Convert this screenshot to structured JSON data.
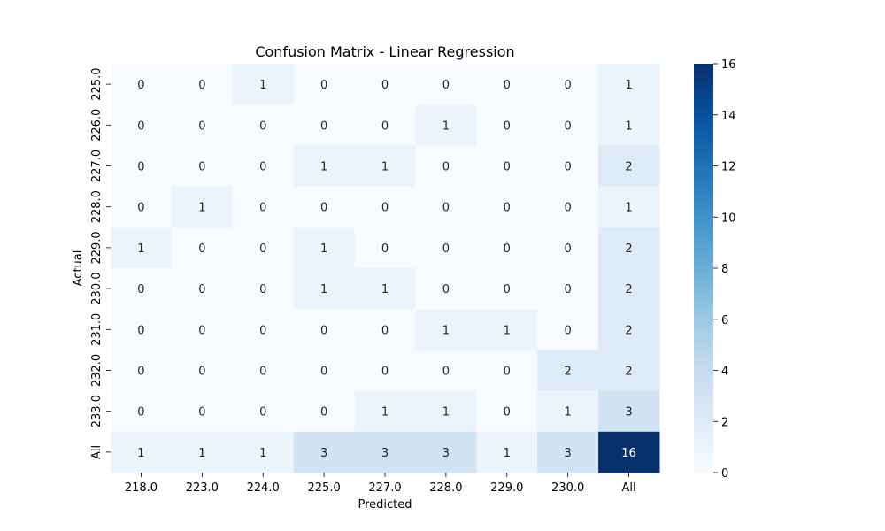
{
  "chart_data": {
    "type": "heatmap",
    "title": "Confusion Matrix - Linear Regression",
    "xlabel": "Predicted",
    "ylabel": "Actual",
    "x_categories": [
      "218.0",
      "223.0",
      "224.0",
      "225.0",
      "227.0",
      "228.0",
      "229.0",
      "230.0",
      "All"
    ],
    "y_categories": [
      "225.0",
      "226.0",
      "227.0",
      "228.0",
      "229.0",
      "230.0",
      "231.0",
      "232.0",
      "233.0",
      "All"
    ],
    "values": [
      [
        0,
        0,
        1,
        0,
        0,
        0,
        0,
        0,
        1
      ],
      [
        0,
        0,
        0,
        0,
        0,
        1,
        0,
        0,
        1
      ],
      [
        0,
        0,
        0,
        1,
        1,
        0,
        0,
        0,
        2
      ],
      [
        0,
        1,
        0,
        0,
        0,
        0,
        0,
        0,
        1
      ],
      [
        1,
        0,
        0,
        1,
        0,
        0,
        0,
        0,
        2
      ],
      [
        0,
        0,
        0,
        1,
        1,
        0,
        0,
        0,
        2
      ],
      [
        0,
        0,
        0,
        0,
        0,
        1,
        1,
        0,
        2
      ],
      [
        0,
        0,
        0,
        0,
        0,
        0,
        0,
        2,
        2
      ],
      [
        0,
        0,
        0,
        0,
        1,
        1,
        0,
        1,
        3
      ],
      [
        1,
        1,
        1,
        3,
        3,
        3,
        1,
        3,
        16
      ]
    ],
    "colorbar": {
      "min": 0,
      "max": 16,
      "ticks": [
        0,
        2,
        4,
        6,
        8,
        10,
        12,
        14,
        16
      ],
      "colormap": "Blues"
    },
    "annotation_threshold": 8
  }
}
